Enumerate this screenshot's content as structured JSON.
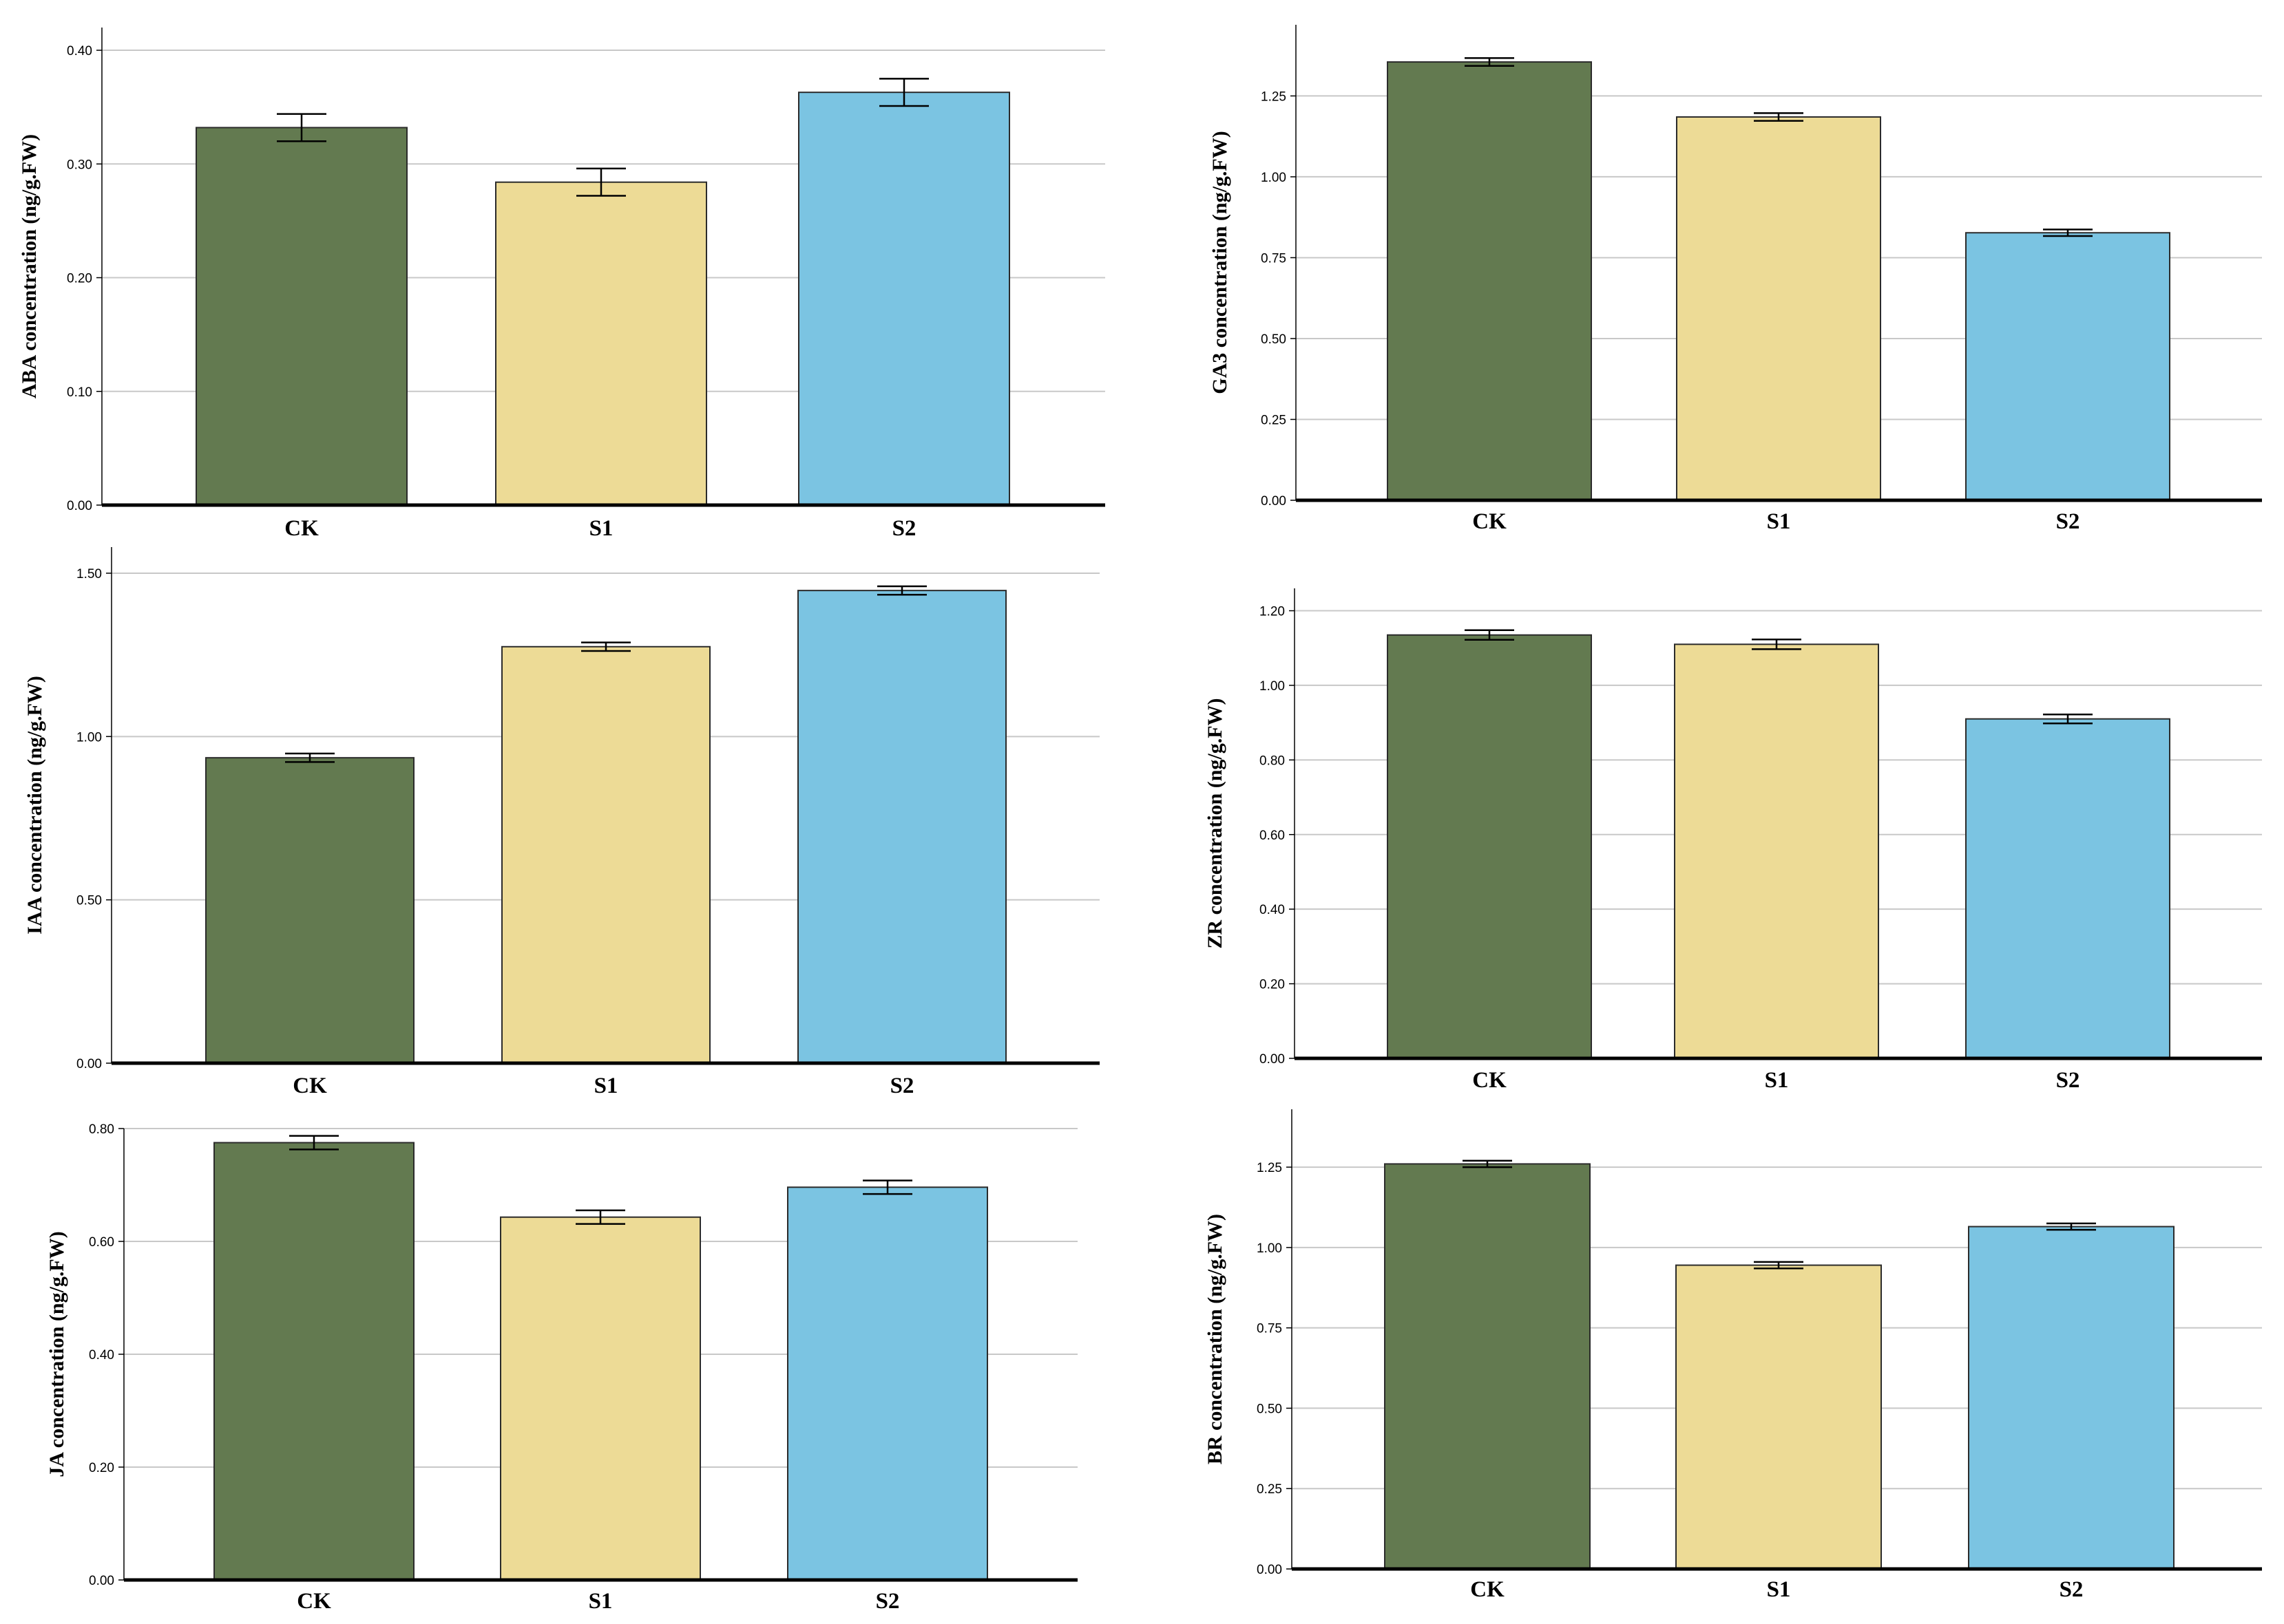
{
  "colors": {
    "CK": "#637a50",
    "S1": "#eddb96",
    "S2": "#7bc4e2"
  },
  "chart_data": [
    {
      "type": "bar",
      "ylabel": "ABA concentration (ng/g.FW)",
      "categories": [
        "CK",
        "S1",
        "S2"
      ],
      "values": [
        0.332,
        0.284,
        0.363
      ],
      "errors": [
        0.012,
        0.012,
        0.012
      ],
      "ylim": [
        0,
        0.42
      ],
      "ticks": [
        0,
        0.1,
        0.2,
        0.3,
        0.4
      ],
      "tick_labels": [
        "0.00",
        "0.10",
        "0.20",
        "0.30",
        "0.40"
      ]
    },
    {
      "type": "bar",
      "ylabel": "GA3 concentration (ng/g.FW)",
      "categories": [
        "CK",
        "S1",
        "S2"
      ],
      "values": [
        1.355,
        1.185,
        0.827
      ],
      "errors": [
        0.012,
        0.012,
        0.01
      ],
      "ylim": [
        0,
        1.47
      ],
      "ticks": [
        0,
        0.25,
        0.5,
        0.75,
        1.0,
        1.25
      ],
      "tick_labels": [
        "0.00",
        "0.25",
        "0.50",
        "0.75",
        "1.00",
        "1.25"
      ]
    },
    {
      "type": "bar",
      "ylabel": "IAA concentration (ng/g.FW)",
      "categories": [
        "CK",
        "S1",
        "S2"
      ],
      "values": [
        0.935,
        1.275,
        1.447
      ],
      "errors": [
        0.013,
        0.013,
        0.013
      ],
      "ylim": [
        0,
        1.58
      ],
      "ticks": [
        0,
        0.5,
        1.0,
        1.5
      ],
      "tick_labels": [
        "0.00",
        "0.50",
        "1.00",
        "1.50"
      ]
    },
    {
      "type": "bar",
      "ylabel": "ZR concentration (ng/g.FW)",
      "categories": [
        "CK",
        "S1",
        "S2"
      ],
      "values": [
        1.135,
        1.11,
        0.91
      ],
      "errors": [
        0.013,
        0.013,
        0.012
      ],
      "ylim": [
        0,
        1.26
      ],
      "ticks": [
        0,
        0.2,
        0.4,
        0.6,
        0.8,
        1.0,
        1.2
      ],
      "tick_labels": [
        "0.00",
        "0.20",
        "0.40",
        "0.60",
        "0.80",
        "1.00",
        "1.20"
      ]
    },
    {
      "type": "bar",
      "ylabel": "JA concentration (ng/g.FW)",
      "categories": [
        "CK",
        "S1",
        "S2"
      ],
      "values": [
        0.775,
        0.643,
        0.696
      ],
      "errors": [
        0.012,
        0.012,
        0.012
      ],
      "ylim": [
        0,
        0.8
      ],
      "ticks": [
        0,
        0.2,
        0.4,
        0.6,
        0.8
      ],
      "tick_labels": [
        "0.00",
        "0.20",
        "0.40",
        "0.60",
        "0.80"
      ]
    },
    {
      "type": "bar",
      "ylabel": "BR concentration (ng/g.FW)",
      "categories": [
        "CK",
        "S1",
        "S2"
      ],
      "values": [
        1.26,
        0.945,
        1.065
      ],
      "errors": [
        0.01,
        0.01,
        0.01
      ],
      "ylim": [
        0,
        1.43
      ],
      "ticks": [
        0,
        0.25,
        0.5,
        0.75,
        1.0,
        1.25
      ],
      "tick_labels": [
        "0.00",
        "0.25",
        "0.50",
        "0.75",
        "1.00",
        "1.25"
      ]
    }
  ]
}
